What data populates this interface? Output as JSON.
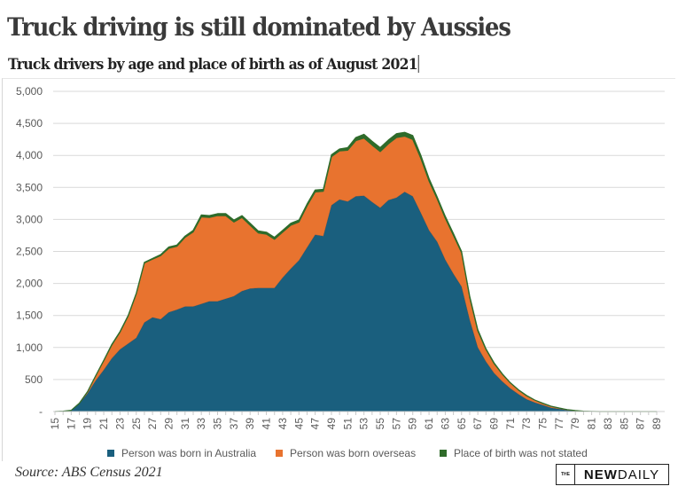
{
  "header": {
    "title": "Truck driving is still dominated by Aussies",
    "subtitle": "Truck drivers by age and place of birth as of August 2021"
  },
  "footer": {
    "source": "Source: ABS Census 2021",
    "logo_the": "THE",
    "logo_new": "NEW",
    "logo_daily": "DAILY"
  },
  "colors": {
    "australia": "#1a5f7e",
    "overseas": "#e8732f",
    "not_stated": "#2f6b2a",
    "grid": "#d9d9d9"
  },
  "chart_data": {
    "type": "area",
    "stacked": true,
    "title": "Truck drivers by age and place of birth as of August 2021",
    "xlabel": "",
    "ylabel": "",
    "ylim": [
      0,
      5000
    ],
    "yticks": [
      0,
      500,
      1000,
      1500,
      2000,
      2500,
      3000,
      3500,
      4000,
      4500,
      5000
    ],
    "ytick_labels": [
      "-",
      "500",
      "1,000",
      "1,500",
      "2,000",
      "2,500",
      "3,000",
      "3,500",
      "4,000",
      "4,500",
      "5,000"
    ],
    "xlim": [
      15,
      89
    ],
    "xtick_labels": [
      "15",
      "17",
      "19",
      "21",
      "23",
      "25",
      "27",
      "29",
      "31",
      "33",
      "35",
      "37",
      "39",
      "41",
      "43",
      "45",
      "47",
      "49",
      "51",
      "53",
      "55",
      "57",
      "59",
      "61",
      "63",
      "65",
      "67",
      "69",
      "71",
      "73",
      "75",
      "77",
      "79",
      "81",
      "83",
      "85",
      "87",
      "89"
    ],
    "grid": true,
    "legend_position": "bottom",
    "x": [
      15,
      16,
      17,
      18,
      19,
      20,
      21,
      22,
      23,
      24,
      25,
      26,
      27,
      28,
      29,
      30,
      31,
      32,
      33,
      34,
      35,
      36,
      37,
      38,
      39,
      40,
      41,
      42,
      43,
      44,
      45,
      46,
      47,
      48,
      49,
      50,
      51,
      52,
      53,
      54,
      55,
      56,
      57,
      58,
      59,
      60,
      61,
      62,
      63,
      64,
      65,
      66,
      67,
      68,
      69,
      70,
      71,
      72,
      73,
      74,
      75,
      76,
      77,
      78,
      79,
      80,
      81,
      82,
      83,
      84,
      85,
      86,
      87,
      88,
      89
    ],
    "series": [
      {
        "name": "Person was born in Australia",
        "values": [
          0,
          5,
          20,
          120,
          280,
          480,
          650,
          830,
          970,
          1060,
          1150,
          1390,
          1470,
          1440,
          1550,
          1590,
          1640,
          1640,
          1680,
          1720,
          1720,
          1760,
          1800,
          1880,
          1920,
          1930,
          1930,
          1930,
          2090,
          2230,
          2360,
          2560,
          2760,
          2740,
          3220,
          3310,
          3280,
          3360,
          3370,
          3270,
          3180,
          3300,
          3340,
          3430,
          3360,
          3100,
          2830,
          2650,
          2370,
          2150,
          1950,
          1430,
          1000,
          780,
          600,
          470,
          360,
          270,
          190,
          140,
          100,
          60,
          40,
          20,
          10,
          5,
          2,
          0,
          0,
          0,
          0,
          0,
          0,
          0,
          0
        ]
      },
      {
        "name": "Person was born overseas",
        "values": [
          0,
          0,
          0,
          8,
          28,
          75,
          145,
          210,
          270,
          430,
          690,
          930,
          910,
          995,
          1000,
          990,
          1080,
          1165,
          1360,
          1310,
          1340,
          1300,
          1160,
          1150,
          990,
          860,
          840,
          760,
          710,
          680,
          600,
          650,
          670,
          700,
          760,
          760,
          800,
          870,
          900,
          890,
          880,
          880,
          940,
          870,
          890,
          850,
          770,
          670,
          650,
          600,
          530,
          350,
          260,
          190,
          150,
          115,
          87,
          67,
          57,
          38,
          28,
          23,
          14,
          9,
          4,
          0,
          0,
          0,
          0,
          0,
          0,
          0,
          0,
          0,
          0
        ]
      },
      {
        "name": "Place of birth was not stated",
        "values": [
          0,
          0,
          0,
          2,
          2,
          5,
          5,
          10,
          10,
          10,
          10,
          10,
          10,
          15,
          20,
          20,
          20,
          25,
          30,
          30,
          30,
          30,
          30,
          30,
          30,
          30,
          30,
          30,
          30,
          30,
          30,
          30,
          30,
          30,
          30,
          30,
          40,
          50,
          60,
          60,
          60,
          60,
          60,
          60,
          60,
          50,
          40,
          30,
          30,
          30,
          20,
          20,
          20,
          10,
          10,
          5,
          3,
          3,
          3,
          2,
          2,
          2,
          1,
          1,
          1,
          0,
          0,
          0,
          0,
          0,
          0,
          0,
          0,
          0,
          0
        ]
      }
    ]
  }
}
